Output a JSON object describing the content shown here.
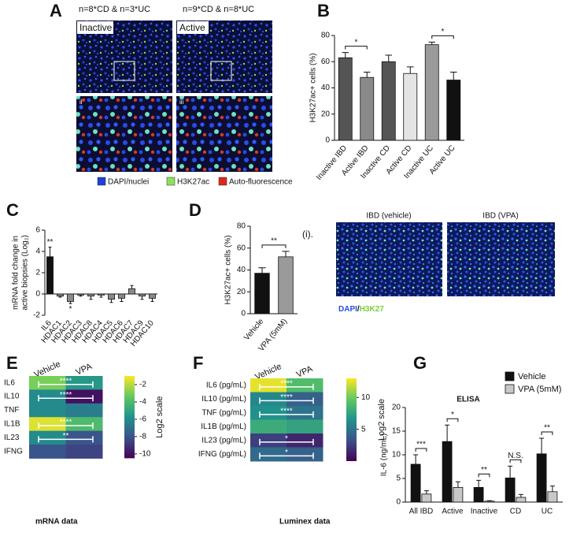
{
  "figure": {
    "panel_labels": [
      "A",
      "B",
      "C",
      "D",
      "E",
      "F",
      "G"
    ],
    "panel_a": {
      "header_left": "n=8*CD & n=3*UC",
      "header_right": "n=9*CD & n=8*UC",
      "image_left": "Inactive",
      "image_right": "Active",
      "zoom_left": "ii",
      "zoom_right": "iii",
      "legend": [
        "DAPI/nuclei",
        "H3K27ac",
        "Auto-fluorescence"
      ],
      "legend_colors": [
        "#1f3fd8",
        "#8ee05a",
        "#e0261b"
      ]
    },
    "panel_i": {
      "label": "(i).",
      "image_left": "IBD (vehicle)",
      "image_right": "IBD (VPA)",
      "stain_dapi": "DAPI",
      "stain_sep": "/",
      "stain_h3k27": "H3K27"
    }
  },
  "chart_data": [
    {
      "type": "bar",
      "ylabel": "H3K27ac+ cells (%)",
      "categories": [
        "Inactive IBD",
        "Active IBD",
        "Inactive CD",
        "Active CD",
        "Inactive UC",
        "Active UC"
      ],
      "values": [
        63,
        48,
        60,
        51,
        73,
        46
      ],
      "errors": [
        4,
        4,
        5,
        5,
        2,
        6
      ],
      "colors": [
        "#555555",
        "#8a8a8a",
        "#555555",
        "#e4e4e4",
        "#9a9a9a",
        "#111111"
      ],
      "ylim": [
        0,
        80
      ],
      "yticks": [
        0,
        20,
        40,
        60,
        80
      ],
      "significance": [
        "*",
        "*"
      ]
    },
    {
      "type": "bar",
      "ylabel": [
        "mRNA fold change in",
        "active biopsies (Log₂)"
      ],
      "categories": [
        "IL6",
        "HDAC1",
        "HDAC2",
        "HDAC3",
        "HDAC8",
        "HDAC4",
        "HDAC5",
        "HDAC6",
        "HDAC7",
        "HDAC9",
        "HDAC10"
      ],
      "values": [
        3.5,
        -0.2,
        -0.7,
        -0.1,
        -0.2,
        -0.1,
        -0.5,
        -0.4,
        0.5,
        -0.2,
        -0.4
      ],
      "errors": [
        0.9,
        0.1,
        0.2,
        0.1,
        0.3,
        0.2,
        0.3,
        0.3,
        0.3,
        0.3,
        0.3
      ],
      "colors": [
        "#111111",
        "#8a8a8a",
        "#8a8a8a",
        "#8a8a8a",
        "#8a8a8a",
        "#8a8a8a",
        "#8a8a8a",
        "#8a8a8a",
        "#8a8a8a",
        "#8a8a8a",
        "#8a8a8a"
      ],
      "ylim": [
        -2,
        6
      ],
      "yticks": [
        -2,
        0,
        2,
        4,
        6
      ],
      "bar_annotations": [
        "**",
        null,
        "*",
        null,
        null,
        null,
        null,
        null,
        null,
        null,
        null
      ]
    },
    {
      "type": "bar",
      "ylabel": "H3K27ac+ cells (%)",
      "categories": [
        "Vehicle",
        "VPA (5mM)"
      ],
      "values": [
        37,
        52
      ],
      "errors": [
        5,
        5
      ],
      "colors": [
        "#111111",
        "#9a9a9a"
      ],
      "ylim": [
        0,
        80
      ],
      "yticks": [
        0,
        20,
        40,
        60,
        80
      ],
      "significance": [
        "**"
      ]
    },
    {
      "type": "heatmap",
      "columns": [
        "Vehicle",
        "VPA"
      ],
      "rows": [
        "IL6",
        "IL10",
        "TNF",
        "IL1B",
        "IL23",
        "IFNG"
      ],
      "values": [
        [
          -3,
          -5.5
        ],
        [
          -6,
          -10
        ],
        [
          -6,
          -6.5
        ],
        [
          -1.5,
          -4
        ],
        [
          -6,
          -8
        ],
        [
          -8,
          -8.5
        ]
      ],
      "zlim": [
        -10.5,
        -1
      ],
      "zticks": [
        -2,
        -4,
        -6,
        -8,
        -10
      ],
      "colorbar_label": "Log2 scale",
      "significance": [
        "****",
        "****",
        null,
        "****",
        "**",
        null
      ],
      "caption": "mRNA data"
    },
    {
      "type": "heatmap",
      "columns": [
        "Vehicle",
        "VPA"
      ],
      "rows": [
        "IL6 (pg/mL)",
        "IL10 (pg/mL)",
        "TNF (pg/mL)",
        "IL1B (pg/mL)",
        "IL23 (pg/mL)",
        "IFNG (pg/mL)"
      ],
      "values": [
        [
          12.5,
          9
        ],
        [
          6,
          4
        ],
        [
          6.5,
          5
        ],
        [
          8,
          7.5
        ],
        [
          2.5,
          1.5
        ],
        [
          4.5,
          4
        ]
      ],
      "zlim": [
        0,
        13
      ],
      "zticks": [
        5,
        10
      ],
      "colorbar_label": "Log2 scale",
      "significance": [
        "****",
        "****",
        "****",
        null,
        "*",
        "*"
      ],
      "caption": "Luminex data"
    },
    {
      "type": "grouped_bar",
      "title": "ELISA",
      "ylabel": "IL-6 (ng/mL)",
      "categories": [
        "All IBD",
        "Active",
        "Inactive",
        "CD",
        "UC"
      ],
      "series": [
        {
          "name": "Vehicle",
          "color": "#111111",
          "values": [
            8,
            12.8,
            3.1,
            5.1,
            10.2
          ],
          "errors": [
            2,
            3.5,
            1.5,
            2.5,
            3.3
          ]
        },
        {
          "name": "VPA (5mM)",
          "color": "#c8c8c8",
          "values": [
            1.7,
            3.1,
            0.2,
            1,
            2.2
          ],
          "errors": [
            0.7,
            1.2,
            0.1,
            0.6,
            1.2
          ]
        }
      ],
      "ylim": [
        0,
        20
      ],
      "yticks": [
        0,
        5,
        10,
        15,
        20
      ],
      "significance": [
        "***",
        "*",
        "**",
        "N.S.",
        "**"
      ]
    }
  ]
}
